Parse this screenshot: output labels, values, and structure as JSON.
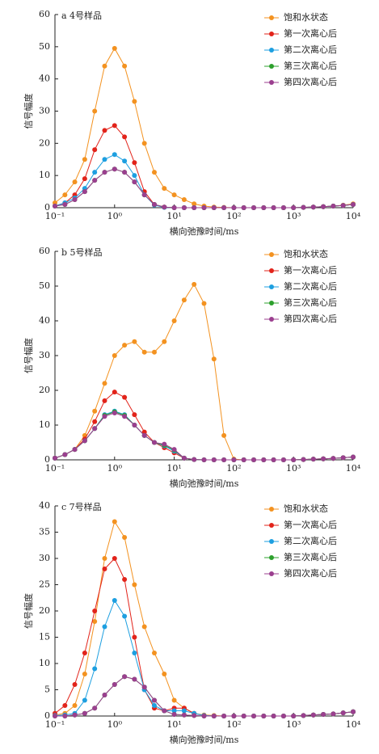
{
  "chart_data": [
    {
      "type": "line",
      "title": "a 4号样品",
      "x_label": "横向弛豫时间/ms",
      "y_label": "信号幅度",
      "xlog": true,
      "legend": "upper right",
      "x": [
        0.1,
        0.147,
        0.215,
        0.316,
        0.464,
        0.681,
        1,
        1.468,
        2.154,
        3.162,
        4.642,
        6.813,
        10,
        14.68,
        21.54,
        31.62,
        46.42,
        68.13,
        100,
        146.8,
        215.4,
        316.2,
        464.2,
        681.3,
        1000,
        1468,
        2154,
        3162,
        4642,
        6813,
        10000
      ],
      "xlim": [
        0.1,
        10000
      ],
      "ylim": [
        0,
        60
      ],
      "xticks": [
        {
          "value": 0.1,
          "label": "10⁻¹"
        },
        {
          "value": 1,
          "label": "10⁰"
        },
        {
          "value": 10,
          "label": "10¹"
        },
        {
          "value": 100,
          "label": "10²"
        },
        {
          "value": 1000,
          "label": "10³"
        },
        {
          "value": 10000,
          "label": "10⁴"
        }
      ],
      "yticks": [
        0,
        10,
        20,
        30,
        40,
        50,
        60
      ],
      "series": [
        {
          "name": "饱和水状态",
          "color": "#f39220",
          "values": [
            1.5,
            4,
            8,
            15,
            30,
            44,
            49.5,
            44,
            33,
            20,
            11,
            6,
            4,
            2.5,
            1.2,
            0.5,
            0.2,
            0.1,
            0,
            0,
            0,
            0,
            0,
            0,
            0,
            0.1,
            0.2,
            0.3,
            0.5,
            0.8,
            1.2
          ]
        },
        {
          "name": "第一次离心后",
          "color": "#e2231a",
          "values": [
            0.5,
            1.5,
            4,
            9,
            18,
            24,
            25.5,
            22,
            14,
            5,
            1,
            0.2,
            0,
            0,
            0,
            0,
            0,
            0,
            0,
            0,
            0,
            0,
            0,
            0,
            0,
            0.1,
            0.2,
            0.3,
            0.5,
            0.7,
            1
          ]
        },
        {
          "name": "第二次离心后",
          "color": "#1d9fe0",
          "values": [
            0.5,
            1.5,
            3,
            6,
            11,
            15,
            16.5,
            14.5,
            10,
            4,
            0.8,
            0.1,
            0,
            0,
            0,
            0,
            0,
            0,
            0,
            0,
            0,
            0,
            0,
            0,
            0,
            0.1,
            0.2,
            0.3,
            0.5,
            0.7,
            1
          ]
        },
        {
          "name": "第三次离心后",
          "color": "#2ca02c",
          "values": [
            0.5,
            1,
            2.5,
            5,
            8.5,
            11,
            12,
            11,
            8,
            4,
            1,
            0.2,
            0,
            0,
            0,
            0,
            0,
            0,
            0,
            0,
            0,
            0,
            0,
            0,
            0,
            0.1,
            0.2,
            0.3,
            0.5,
            0.7,
            1
          ]
        },
        {
          "name": "第四次离心后",
          "color": "#9b3f8f",
          "values": [
            0.5,
            1,
            2.5,
            5,
            8.5,
            11,
            12,
            11,
            8,
            4,
            1,
            0.2,
            0,
            0,
            0,
            0,
            0,
            0,
            0,
            0,
            0,
            0,
            0,
            0,
            0,
            0.1,
            0.2,
            0.3,
            0.5,
            0.7,
            1
          ]
        }
      ]
    },
    {
      "type": "line",
      "title": "b 5号样品",
      "x_label": "横向弛豫时间/ms",
      "y_label": "信号幅度",
      "xlog": true,
      "legend": "upper right",
      "x": [
        0.1,
        0.147,
        0.215,
        0.316,
        0.464,
        0.681,
        1,
        1.468,
        2.154,
        3.162,
        4.642,
        6.813,
        10,
        14.68,
        21.54,
        31.62,
        46.42,
        68.13,
        100,
        146.8,
        215.4,
        316.2,
        464.2,
        681.3,
        1000,
        1468,
        2154,
        3162,
        4642,
        6813,
        10000
      ],
      "xlim": [
        0.1,
        10000
      ],
      "ylim": [
        0,
        60
      ],
      "xticks": [
        {
          "value": 0.1,
          "label": "10⁻¹"
        },
        {
          "value": 1,
          "label": "10⁰"
        },
        {
          "value": 10,
          "label": "10¹"
        },
        {
          "value": 100,
          "label": "10²"
        },
        {
          "value": 1000,
          "label": "10³"
        },
        {
          "value": 10000,
          "label": "10⁴"
        }
      ],
      "yticks": [
        0,
        10,
        20,
        30,
        40,
        50,
        60
      ],
      "series": [
        {
          "name": "饱和水状态",
          "color": "#f39220",
          "values": [
            0.5,
            1.5,
            3,
            7,
            14,
            22,
            30,
            33,
            34,
            31,
            31,
            34,
            40,
            46,
            50.5,
            45,
            29,
            7,
            0.2,
            0,
            0,
            0,
            0,
            0,
            0,
            0.1,
            0.2,
            0.3,
            0.4,
            0.6,
            0.8
          ]
        },
        {
          "name": "第一次离心后",
          "color": "#e2231a",
          "values": [
            0.5,
            1.5,
            3,
            6,
            11,
            17,
            19.5,
            18,
            13,
            8,
            5,
            3.5,
            2,
            0.5,
            0.1,
            0,
            0,
            0,
            0,
            0,
            0,
            0,
            0,
            0,
            0,
            0.1,
            0.2,
            0.3,
            0.4,
            0.6,
            0.8
          ]
        },
        {
          "name": "第二次离心后",
          "color": "#1d9fe0",
          "values": [
            0.5,
            1.5,
            3,
            5.5,
            9,
            13,
            14,
            13,
            10,
            7,
            5,
            4,
            2.5,
            0.5,
            0.1,
            0,
            0,
            0,
            0,
            0,
            0,
            0,
            0,
            0,
            0,
            0.1,
            0.2,
            0.3,
            0.4,
            0.6,
            0.8
          ]
        },
        {
          "name": "第三次离心后",
          "color": "#2ca02c",
          "values": [
            0.5,
            1.5,
            3,
            5.5,
            9,
            12.8,
            13.8,
            12.8,
            10,
            7,
            5,
            4.2,
            2.8,
            0.5,
            0.1,
            0,
            0,
            0,
            0,
            0,
            0,
            0,
            0,
            0,
            0,
            0.1,
            0.2,
            0.3,
            0.4,
            0.6,
            0.8
          ]
        },
        {
          "name": "第四次离心后",
          "color": "#9b3f8f",
          "values": [
            0.5,
            1.5,
            3,
            5.5,
            9,
            12.5,
            13.5,
            12.5,
            10,
            7,
            5,
            4.5,
            3,
            0.5,
            0.1,
            0,
            0,
            0,
            0,
            0,
            0,
            0,
            0,
            0,
            0,
            0.1,
            0.2,
            0.3,
            0.4,
            0.6,
            0.8
          ]
        }
      ]
    },
    {
      "type": "line",
      "title": "c 7号样品",
      "x_label": "横向弛豫时间/ms",
      "y_label": "信号幅度",
      "xlog": true,
      "legend": "upper right",
      "x": [
        0.1,
        0.147,
        0.215,
        0.316,
        0.464,
        0.681,
        1,
        1.468,
        2.154,
        3.162,
        4.642,
        6.813,
        10,
        14.68,
        21.54,
        31.62,
        46.42,
        68.13,
        100,
        146.8,
        215.4,
        316.2,
        464.2,
        681.3,
        1000,
        1468,
        2154,
        3162,
        4642,
        6813,
        10000
      ],
      "xlim": [
        0.1,
        10000
      ],
      "ylim": [
        0,
        40
      ],
      "xticks": [
        {
          "value": 0.1,
          "label": "10⁻¹"
        },
        {
          "value": 1,
          "label": "10⁰"
        },
        {
          "value": 10,
          "label": "10¹"
        },
        {
          "value": 100,
          "label": "10²"
        },
        {
          "value": 1000,
          "label": "10³"
        },
        {
          "value": 10000,
          "label": "10⁴"
        }
      ],
      "yticks": [
        0,
        5,
        10,
        15,
        20,
        25,
        30,
        35,
        40
      ],
      "series": [
        {
          "name": "饱和水状态",
          "color": "#f39220",
          "values": [
            0.2,
            0.5,
            2,
            8,
            18,
            30,
            37,
            34,
            25,
            17,
            12,
            8,
            3,
            1.5,
            0.5,
            0.2,
            0.1,
            0,
            0,
            0,
            0,
            0,
            0,
            0,
            0,
            0.1,
            0.2,
            0.3,
            0.4,
            0.6,
            0.8
          ]
        },
        {
          "name": "第一次离心后",
          "color": "#e2231a",
          "values": [
            0.5,
            2,
            6,
            12,
            20,
            28,
            30,
            26,
            15,
            5,
            1.5,
            1,
            1.5,
            1.5,
            0.5,
            0.1,
            0,
            0,
            0,
            0,
            0,
            0,
            0,
            0,
            0,
            0.1,
            0.2,
            0.3,
            0.4,
            0.6,
            0.8
          ]
        },
        {
          "name": "第二次离心后",
          "color": "#1d9fe0",
          "values": [
            0.1,
            0.2,
            0.5,
            3,
            9,
            17,
            22,
            19,
            12,
            5,
            2,
            1,
            1,
            1,
            0.5,
            0.1,
            0,
            0,
            0,
            0,
            0,
            0,
            0,
            0,
            0,
            0.1,
            0.2,
            0.3,
            0.4,
            0.6,
            0.8
          ]
        },
        {
          "name": "第三次离心后",
          "color": "#2ca02c",
          "values": [
            0,
            0,
            0.2,
            0.5,
            1.5,
            4,
            6,
            7.5,
            7,
            5.5,
            3,
            1,
            0.3,
            0.2,
            0.1,
            0,
            0,
            0,
            0,
            0,
            0,
            0,
            0,
            0,
            0,
            0.1,
            0.2,
            0.3,
            0.4,
            0.6,
            0.8
          ]
        },
        {
          "name": "第四次离心后",
          "color": "#9b3f8f",
          "values": [
            0,
            0,
            0.2,
            0.5,
            1.5,
            4,
            6,
            7.5,
            7,
            5.5,
            3,
            1,
            0.3,
            0.2,
            0.1,
            0,
            0,
            0,
            0,
            0,
            0,
            0,
            0,
            0,
            0,
            0.1,
            0.2,
            0.3,
            0.4,
            0.6,
            0.8
          ]
        }
      ]
    }
  ]
}
